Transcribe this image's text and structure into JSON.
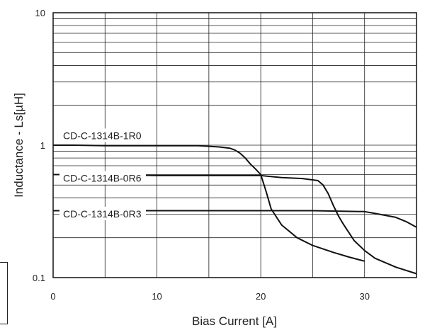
{
  "chart_data": {
    "type": "line",
    "title": "",
    "xlabel": "Bias Current [A]",
    "ylabel": "Inductance - Ls[µH]",
    "xlim": [
      0,
      35
    ],
    "ylim": [
      0.1,
      10
    ],
    "yscale": "log",
    "grid": true,
    "x_ticks": [
      0,
      10,
      20,
      30
    ],
    "x_tick_labels": [
      "0",
      "10",
      "20",
      "30"
    ],
    "y_ticks": [
      0.1,
      1,
      10
    ],
    "y_tick_labels": [
      "0.1",
      "1",
      "10"
    ],
    "series": [
      {
        "name": "CD-C-1314B-1R0",
        "x": [
          0,
          2,
          5,
          10,
          14,
          15,
          16,
          17,
          17.5,
          18,
          18.5,
          19,
          19.5,
          20,
          20.5,
          21,
          22,
          23.5,
          25,
          27,
          28.5,
          30
        ],
        "y": [
          1.0,
          1.0,
          0.99,
          0.99,
          0.99,
          0.98,
          0.97,
          0.95,
          0.92,
          0.87,
          0.8,
          0.72,
          0.66,
          0.6,
          0.45,
          0.33,
          0.25,
          0.2,
          0.175,
          0.155,
          0.143,
          0.133
        ]
      },
      {
        "name": "CD-C-1314B-0R6",
        "x": [
          0,
          5,
          10,
          15,
          20,
          22,
          24,
          25.5,
          26,
          26.5,
          27,
          27.5,
          28,
          29,
          30,
          31,
          33,
          35
        ],
        "y": [
          0.6,
          0.6,
          0.59,
          0.59,
          0.59,
          0.57,
          0.56,
          0.54,
          0.5,
          0.43,
          0.35,
          0.29,
          0.25,
          0.19,
          0.16,
          0.14,
          0.12,
          0.107
        ]
      },
      {
        "name": "CD-C-1314B-0R3",
        "x": [
          0,
          2,
          3,
          4,
          5,
          10,
          15,
          20,
          25,
          30,
          31,
          32,
          33,
          34,
          35
        ],
        "y": [
          0.32,
          0.32,
          0.33,
          0.33,
          0.32,
          0.32,
          0.32,
          0.32,
          0.32,
          0.315,
          0.305,
          0.295,
          0.285,
          0.265,
          0.24
        ]
      }
    ]
  }
}
